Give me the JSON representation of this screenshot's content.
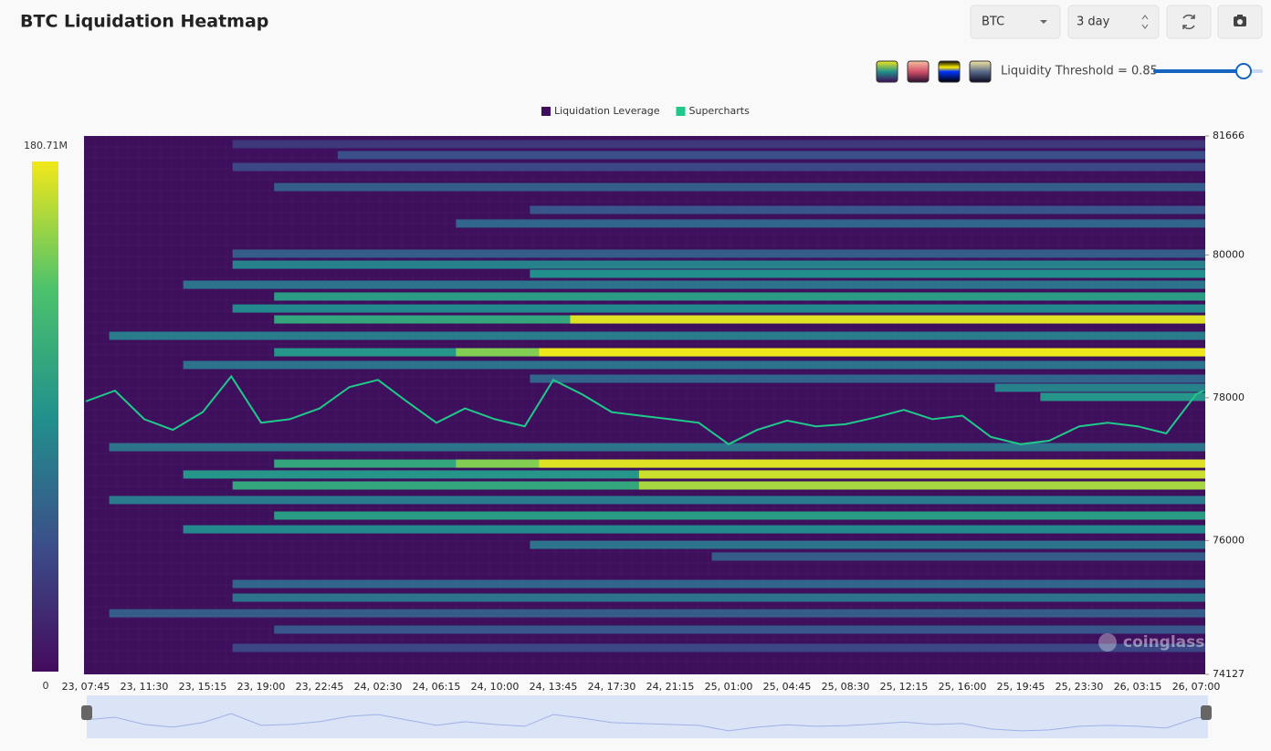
{
  "title": "BTC Liquidation Heatmap",
  "controls": {
    "symbol": "BTC",
    "range": "3 day",
    "threshold_label": "Liquidity Threshold = 0.85"
  },
  "watermark": "coinglass",
  "chart_data": {
    "type": "heatmap",
    "colorscale": [
      "#440b5c",
      "#3b4f8a",
      "#21918c",
      "#4cc26c",
      "#f2e81a"
    ],
    "zlim": [
      0,
      180710000
    ],
    "zticks": [
      0,
      {
        "value": 180710000,
        "label": "180.71M"
      }
    ],
    "ylim": [
      74127,
      81666
    ],
    "yticks": [
      74127,
      76000,
      78000,
      80000,
      81666
    ],
    "xlim": [
      "23, 07:38",
      "26, 07:35"
    ],
    "x_labels": [
      "23, 07:45",
      "23, 11:30",
      "23, 15:15",
      "23, 19:00",
      "23, 22:45",
      "24, 02:30",
      "24, 06:15",
      "24, 10:00",
      "24, 13:45",
      "24, 17:30",
      "24, 21:15",
      "25, 01:00",
      "25, 04:45",
      "25, 08:30",
      "25, 12:15",
      "25, 16:00",
      "25, 19:45",
      "25, 23:30",
      "26, 03:15",
      "26, 07:00"
    ],
    "series": [
      {
        "name": "Liquidation Leverage",
        "color": "#3d0f5c",
        "prices": [
          81551,
          81398,
          81232,
          80950,
          80631,
          80440,
          80018,
          79864,
          79737,
          79583,
          79418,
          79250,
          79097,
          79097,
          78868,
          78637,
          78637,
          78637,
          78459,
          78267,
          78140,
          78012,
          77308,
          77078,
          77078,
          77078,
          76926,
          76926,
          76772,
          76772,
          76568,
          76350,
          76158,
          75941,
          75776,
          75393,
          75201,
          74983,
          74753,
          74498
        ],
        "starts": [
          "23, 17:10",
          "23, 23:55",
          "23, 17:10",
          "23, 19:50",
          "24, 12:15",
          "24, 07:30",
          "23, 17:10",
          "23, 17:10",
          "24, 12:15",
          "23, 14:00",
          "23, 19:50",
          "23, 17:10",
          "23, 19:50",
          "24, 14:50",
          "23, 09:15",
          "23, 19:50",
          "24, 07:30",
          "24, 12:50",
          "23, 14:00",
          "24, 12:15",
          "25, 18:05",
          "25, 21:00",
          "23, 09:15",
          "23, 19:50",
          "24, 07:30",
          "24, 12:50",
          "23, 14:00",
          "24, 19:15",
          "23, 17:10",
          "24, 19:15",
          "23, 09:15",
          "23, 19:50",
          "23, 14:00",
          "24, 12:15",
          "24, 23:55",
          "23, 17:10",
          "23, 17:10",
          "23, 09:15",
          "23, 19:50",
          "23, 17:10"
        ],
        "values": [
          30000000,
          45000000,
          40000000,
          55000000,
          50000000,
          60000000,
          55000000,
          80000000,
          90000000,
          70000000,
          100000000,
          85000000,
          110000000,
          175000000,
          75000000,
          95000000,
          150000000,
          180000000,
          70000000,
          60000000,
          80000000,
          95000000,
          70000000,
          110000000,
          150000000,
          175000000,
          95000000,
          170000000,
          110000000,
          160000000,
          75000000,
          100000000,
          85000000,
          70000000,
          55000000,
          60000000,
          70000000,
          55000000,
          50000000,
          40000000
        ]
      },
      {
        "name": "Supercharts",
        "color": "#1fc98a",
        "x": [
          "23, 07:45",
          "23, 09:37",
          "23, 11:30",
          "23, 13:20",
          "23, 15:15",
          "23, 17:05",
          "23, 19:00",
          "23, 20:50",
          "23, 22:45",
          "24, 00:40",
          "24, 02:30",
          "24, 04:20",
          "24, 06:15",
          "24, 08:05",
          "24, 10:00",
          "24, 11:55",
          "24, 13:45",
          "24, 15:35",
          "24, 17:30",
          "24, 19:20",
          "24, 21:15",
          "24, 23:05",
          "25, 01:00",
          "25, 02:50",
          "25, 04:45",
          "25, 06:35",
          "25, 08:30",
          "25, 10:20",
          "25, 12:15",
          "25, 14:05",
          "25, 16:00",
          "25, 17:50",
          "25, 19:45",
          "25, 21:35",
          "25, 23:30",
          "26, 01:20",
          "26, 03:15",
          "26, 05:05",
          "26, 07:00",
          "26, 07:30"
        ],
        "values": [
          77950,
          78100,
          77700,
          77550,
          77800,
          78300,
          77650,
          77700,
          77850,
          78150,
          78250,
          77950,
          77650,
          77850,
          77700,
          77600,
          78250,
          78050,
          77800,
          77750,
          77700,
          77650,
          77350,
          77550,
          77680,
          77600,
          77630,
          77720,
          77830,
          77700,
          77750,
          77450,
          77350,
          77400,
          77600,
          77650,
          77600,
          77500,
          78050,
          78100
        ]
      }
    ]
  }
}
